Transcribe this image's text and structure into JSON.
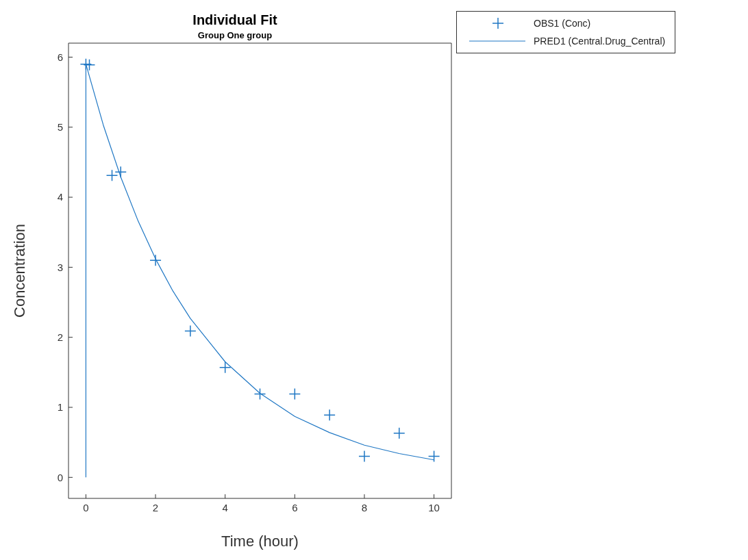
{
  "chart_data": {
    "type": "scatter",
    "title": "Individual Fit",
    "subtitle": "Group One group",
    "xlabel": "Time (hour)",
    "ylabel": "Concentration",
    "xlim": [
      -0.5,
      10.5
    ],
    "ylim": [
      -0.3,
      6.2
    ],
    "xticks": [
      0,
      2,
      4,
      6,
      8,
      10
    ],
    "yticks": [
      0,
      1,
      2,
      3,
      4,
      5,
      6
    ],
    "grid": false,
    "legend": "top right",
    "series": [
      {
        "name": "OBS1 (Conc)",
        "marker": "cross",
        "color": "#1f77c4",
        "x": [
          0,
          0.1,
          0.75,
          1,
          2,
          3,
          4,
          5,
          6,
          7,
          8,
          9,
          10
        ],
        "values": [
          5.9,
          5.89,
          4.31,
          4.36,
          3.1,
          2.09,
          1.57,
          1.19,
          1.19,
          0.89,
          0.3,
          0.63,
          0.3
        ]
      },
      {
        "name": "PRED1 (Central.Drug_Central)",
        "type": "line",
        "marker": "none",
        "line_style": "solid",
        "color": "#1f77c4",
        "x": [
          0,
          0,
          0.5,
          1,
          1.5,
          2,
          2.5,
          3,
          4,
          5,
          6,
          7,
          8,
          9,
          10
        ],
        "values": [
          0,
          5.9,
          5.03,
          4.29,
          3.66,
          3.12,
          2.66,
          2.27,
          1.65,
          1.2,
          0.87,
          0.64,
          0.46,
          0.34,
          0.25
        ]
      }
    ]
  }
}
